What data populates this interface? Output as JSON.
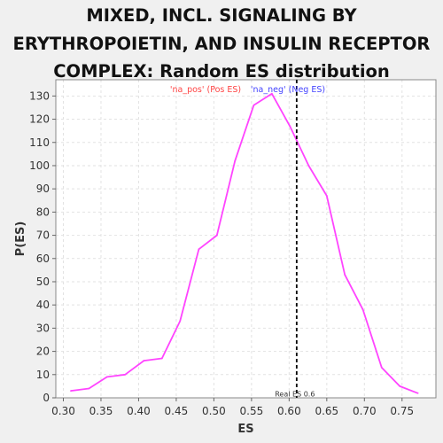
{
  "chart_data": {
    "type": "line",
    "title": "MIXED, INCL. SIGNALING BY ERYTHROPOIETIN, AND INSULIN RECEPTOR COMPLEX: Random ES distribution",
    "xlabel": "ES",
    "ylabel": "P(ES)",
    "xlim": [
      0.29,
      0.795
    ],
    "ylim": [
      0,
      137
    ],
    "x_ticks": [
      0.3,
      0.35,
      0.4,
      0.45,
      0.5,
      0.55,
      0.6,
      0.65,
      0.7,
      0.75
    ],
    "x_tick_labels": [
      "0.30",
      "0.35",
      "0.40",
      "0.45",
      "0.50",
      "0.55",
      "0.60",
      "0.65",
      "0.70",
      "0.75"
    ],
    "y_ticks": [
      0,
      10,
      20,
      30,
      40,
      50,
      60,
      70,
      80,
      90,
      100,
      110,
      120,
      130
    ],
    "y_tick_labels": [
      "0",
      "10",
      "20",
      "30",
      "40",
      "50",
      "60",
      "70",
      "80",
      "90",
      "100",
      "110",
      "120",
      "130"
    ],
    "grid": true,
    "series": [
      {
        "color": "#ff44ff",
        "x": [
          0.31,
          0.334,
          0.358,
          0.382,
          0.407,
          0.431,
          0.455,
          0.48,
          0.504,
          0.528,
          0.553,
          0.577,
          0.601,
          0.626,
          0.65,
          0.674,
          0.698,
          0.723,
          0.747,
          0.771
        ],
        "y": [
          3,
          4,
          9,
          10,
          16,
          17,
          33,
          64,
          70,
          102,
          126,
          131,
          117,
          100,
          87,
          53,
          38,
          13,
          5,
          2
        ]
      }
    ],
    "legend": {
      "placement": "top-center",
      "entries": [
        {
          "label": "'na_pos' (Pos ES)",
          "color": "#ff4444"
        },
        {
          "label": "'na_neg' (Neg ES)",
          "color": "#4444ff"
        }
      ]
    },
    "marker": {
      "x": 0.61,
      "label": "Real ES 0.6",
      "color": "#000000"
    }
  }
}
